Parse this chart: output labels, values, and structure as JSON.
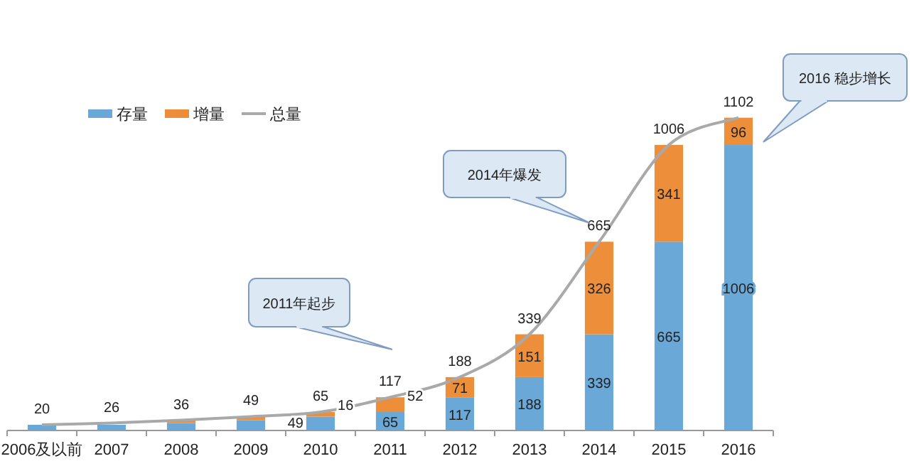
{
  "chart_data": {
    "type": "bar",
    "stacked": true,
    "legend": "top left",
    "categories": [
      "2006及以前",
      "2007",
      "2008",
      "2009",
      "2010",
      "2011",
      "2012",
      "2013",
      "2014",
      "2015",
      "2016"
    ],
    "series": [
      {
        "name": "存量",
        "type": "bar",
        "color": "#6aa8d8",
        "values": [
          20,
          20,
          26,
          36,
          49,
          65,
          117,
          188,
          339,
          665,
          1006
        ],
        "value_labels": [
          null,
          null,
          null,
          null,
          "49",
          "65",
          "117",
          "188",
          "339",
          "665",
          "1006"
        ]
      },
      {
        "name": "增量",
        "type": "bar",
        "color": "#ed8f3a",
        "values": [
          0,
          null,
          10,
          13,
          16,
          52,
          71,
          151,
          326,
          341,
          96
        ],
        "value_labels": [
          null,
          null,
          null,
          null,
          "16",
          "52",
          "71",
          "151",
          "326",
          "341",
          "96"
        ]
      },
      {
        "name": "总量",
        "type": "line",
        "color": "#a9a9a9",
        "values": [
          20,
          26,
          36,
          49,
          65,
          117,
          188,
          339,
          665,
          1006,
          1102
        ],
        "value_labels": [
          "20",
          "26",
          "36",
          "49",
          "65",
          "117",
          "188",
          "339",
          "665",
          "1006",
          "1102"
        ]
      }
    ],
    "annotations": [
      "2011年起步",
      "2014年爆发",
      "2016 稳步增长"
    ]
  }
}
